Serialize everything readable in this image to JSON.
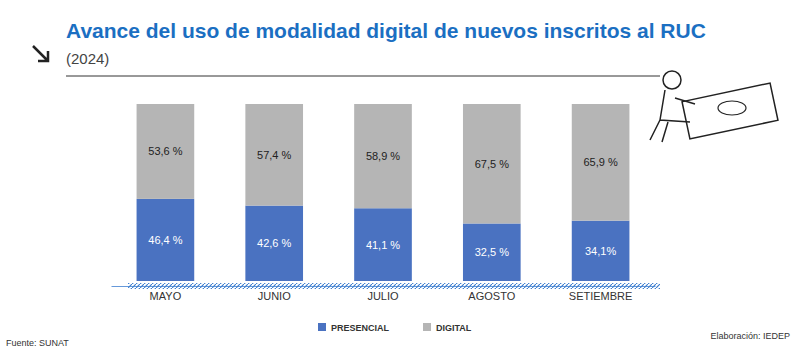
{
  "chart_data": {
    "type": "bar",
    "title": "Avance del uso de modalidad digital de  nuevos inscritos al RUC",
    "subtitle": "(2024)",
    "categories": [
      "MAYO",
      "JUNIO",
      "JULIO",
      "AGOSTO",
      "SETIEMBRE"
    ],
    "series": [
      {
        "name": "PRESENCIAL",
        "color": "#4a72c1",
        "values": [
          46.4,
          42.6,
          41.1,
          32.5,
          34.1
        ],
        "value_labels": [
          "46,4 %",
          "42,6 %",
          "41,1 %",
          "32,5 %",
          "34,1%"
        ]
      },
      {
        "name": "DIGITAL",
        "color": "#b5b5b5",
        "values": [
          53.6,
          57.4,
          58.9,
          67.5,
          65.9
        ],
        "value_labels": [
          "53,6 %",
          "57,4 %",
          "58,9 %",
          "67,5 %",
          "65,9 %"
        ]
      }
    ],
    "ylim": [
      0,
      100
    ],
    "stacked": true,
    "data_labels": true,
    "tick_labels": "x",
    "legend": "bottom",
    "annotations": [
      "Fuente: SUNAT",
      "Elaboración: IEDEP"
    ]
  }
}
